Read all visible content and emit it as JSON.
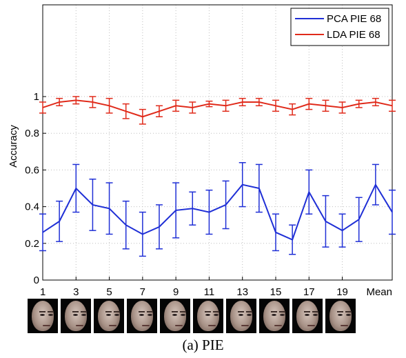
{
  "chart_data": {
    "type": "line",
    "title": "",
    "xlabel": "",
    "ylabel": "Accuracy",
    "x": [
      1,
      2,
      3,
      4,
      5,
      6,
      7,
      8,
      9,
      10,
      11,
      12,
      13,
      14,
      15,
      16,
      17,
      18,
      19,
      20,
      21,
      22
    ],
    "xlim": [
      1,
      22
    ],
    "ylim": [
      0,
      1.5
    ],
    "xticks": [
      1,
      3,
      5,
      7,
      9,
      11,
      13,
      15,
      17,
      19,
      22
    ],
    "xtick_labels": [
      "1",
      "3",
      "5",
      "7",
      "9",
      "11",
      "13",
      "15",
      "17",
      "19",
      "Mean"
    ],
    "yticks": [
      0,
      0.2,
      0.4,
      0.6,
      0.8,
      1
    ],
    "ytick_labels": [
      "0",
      "0.2",
      "0.4",
      "0.6",
      "0.8",
      "1"
    ],
    "grid": true,
    "legend_position": "top-right",
    "series": [
      {
        "name": "PCA PIE 68",
        "color": "#1f2fd6",
        "values": [
          0.26,
          0.32,
          0.5,
          0.41,
          0.39,
          0.3,
          0.25,
          0.29,
          0.38,
          0.39,
          0.37,
          0.41,
          0.52,
          0.5,
          0.26,
          0.22,
          0.48,
          0.32,
          0.27,
          0.33,
          0.52,
          0.37
        ],
        "err": [
          0.1,
          0.11,
          0.13,
          0.14,
          0.14,
          0.13,
          0.12,
          0.12,
          0.15,
          0.09,
          0.12,
          0.13,
          0.12,
          0.13,
          0.1,
          0.08,
          0.12,
          0.14,
          0.09,
          0.12,
          0.11,
          0.12
        ]
      },
      {
        "name": "LDA PIE 68",
        "color": "#e02a1a",
        "values": [
          0.94,
          0.97,
          0.98,
          0.97,
          0.95,
          0.92,
          0.89,
          0.92,
          0.95,
          0.94,
          0.96,
          0.95,
          0.97,
          0.97,
          0.95,
          0.93,
          0.96,
          0.95,
          0.94,
          0.96,
          0.97,
          0.95
        ],
        "err": [
          0.03,
          0.02,
          0.02,
          0.03,
          0.04,
          0.04,
          0.04,
          0.03,
          0.03,
          0.03,
          0.015,
          0.03,
          0.02,
          0.02,
          0.03,
          0.03,
          0.03,
          0.03,
          0.03,
          0.02,
          0.02,
          0.03
        ]
      }
    ]
  },
  "faces": [
    "face-1",
    "face-3",
    "face-5",
    "face-7",
    "face-9",
    "face-11",
    "face-13",
    "face-15",
    "face-17",
    "face-19"
  ],
  "caption": "(a) PIE"
}
